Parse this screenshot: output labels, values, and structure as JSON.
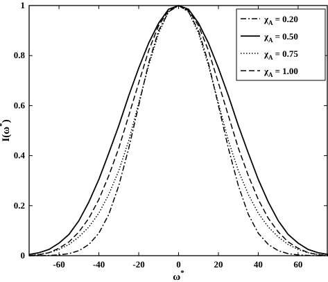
{
  "chart_data": {
    "type": "line",
    "xlabel_base": "ω",
    "xlabel_sup": "*",
    "ylabel_base": "I(ω",
    "ylabel_sup": "*",
    "ylabel_tail": ")",
    "xlim": [
      -75,
      75
    ],
    "ylim": [
      0,
      1
    ],
    "xticks": [
      -60,
      -40,
      -20,
      0,
      20,
      40,
      60
    ],
    "yticks": [
      0,
      0.2,
      0.4,
      0.6,
      0.8,
      1
    ],
    "ytick_labels": [
      "0",
      "0.2",
      "0.4",
      "0.6",
      "0.8",
      "1"
    ],
    "grid": false,
    "legend_position": "top-right",
    "x": [
      -75,
      -70,
      -65,
      -60,
      -55,
      -50,
      -45,
      -40,
      -35,
      -30,
      -25,
      -20,
      -15,
      -10,
      -5,
      0,
      5,
      10,
      15,
      20,
      25,
      30,
      35,
      40,
      45,
      50,
      55,
      60,
      65,
      70,
      75
    ],
    "series": [
      {
        "legend_sym": "χ",
        "legend_sub": "A",
        "legend_val": "= 0.20",
        "dash": "dashdot",
        "values": [
          0.0,
          0.0,
          0.001,
          0.003,
          0.008,
          0.02,
          0.045,
          0.09,
          0.165,
          0.28,
          0.43,
          0.6,
          0.77,
          0.9,
          0.975,
          1.0,
          0.975,
          0.9,
          0.77,
          0.6,
          0.43,
          0.28,
          0.165,
          0.09,
          0.045,
          0.02,
          0.008,
          0.003,
          0.001,
          0.0,
          0.0
        ]
      },
      {
        "legend_sym": "χ",
        "legend_sub": "A",
        "legend_val": "= 0.50",
        "dash": "solid",
        "values": [
          0.005,
          0.012,
          0.025,
          0.05,
          0.085,
          0.14,
          0.215,
          0.305,
          0.41,
          0.52,
          0.64,
          0.75,
          0.85,
          0.93,
          0.985,
          1.0,
          0.985,
          0.93,
          0.85,
          0.75,
          0.64,
          0.52,
          0.41,
          0.305,
          0.215,
          0.14,
          0.085,
          0.05,
          0.025,
          0.012,
          0.005
        ]
      },
      {
        "legend_sym": "χ",
        "legend_sub": "A",
        "legend_val": "= 0.75",
        "dash": "dotted",
        "values": [
          0.0,
          0.005,
          0.012,
          0.025,
          0.045,
          0.075,
          0.115,
          0.17,
          0.245,
          0.34,
          0.46,
          0.61,
          0.76,
          0.89,
          0.975,
          1.0,
          0.975,
          0.89,
          0.76,
          0.61,
          0.46,
          0.34,
          0.245,
          0.17,
          0.115,
          0.075,
          0.045,
          0.025,
          0.012,
          0.005,
          0.0
        ]
      },
      {
        "legend_sym": "χ",
        "legend_sub": "A",
        "legend_val": "= 1.00",
        "dash": "dashed",
        "values": [
          0.0,
          0.004,
          0.012,
          0.03,
          0.055,
          0.095,
          0.15,
          0.225,
          0.32,
          0.43,
          0.56,
          0.69,
          0.82,
          0.92,
          0.98,
          1.0,
          0.98,
          0.92,
          0.82,
          0.69,
          0.56,
          0.43,
          0.32,
          0.225,
          0.15,
          0.095,
          0.055,
          0.03,
          0.012,
          0.004,
          0.0
        ]
      }
    ]
  }
}
